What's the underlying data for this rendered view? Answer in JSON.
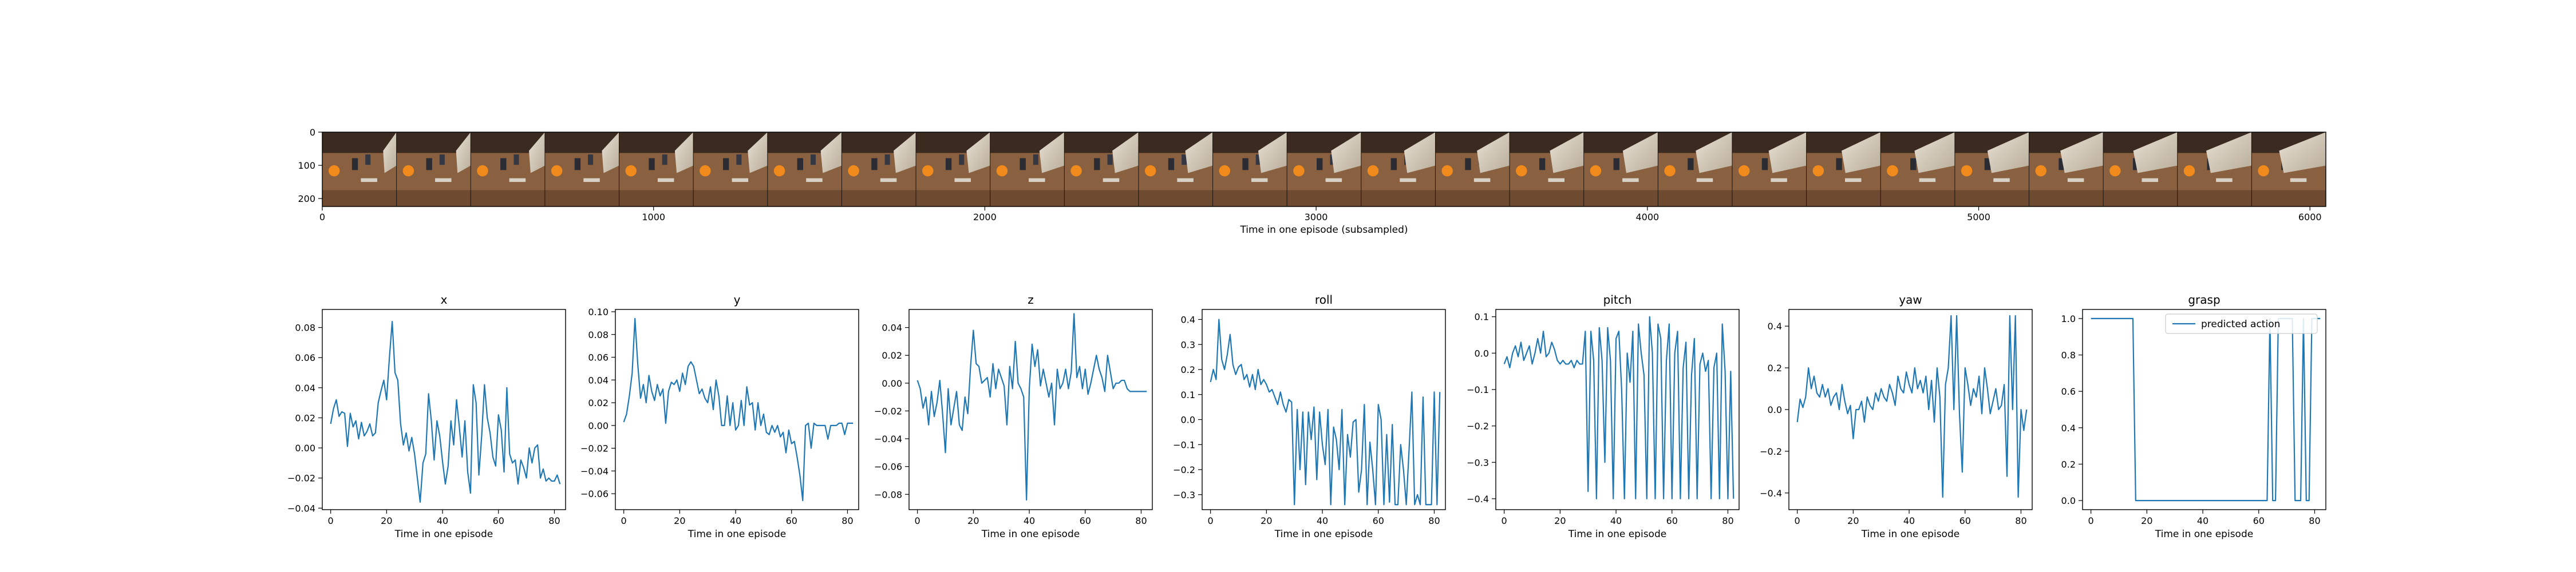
{
  "colors": {
    "line": "#1f77b4",
    "axes": "#000000",
    "background": "#ffffff"
  },
  "filmstrip": {
    "xlabel": "Time in one episode (subsampled)",
    "xlim": [
      0,
      6048
    ],
    "ylim": [
      224,
      0
    ],
    "xticks": [
      0,
      1000,
      2000,
      3000,
      4000,
      5000,
      6000
    ],
    "yticks": [
      0,
      100,
      200
    ],
    "frame_count": 27,
    "frame_width": 224,
    "image_description": "strip of robot camera frames"
  },
  "chart_data": [
    {
      "type": "line",
      "title": "x",
      "xlabel": "Time in one episode",
      "xlim": [
        -3,
        84
      ],
      "ylim": [
        -0.041,
        0.092
      ],
      "xticks": [
        0,
        20,
        40,
        60,
        80
      ],
      "yticks": [
        -0.04,
        -0.02,
        0.0,
        0.02,
        0.04,
        0.06,
        0.08
      ],
      "ytick_labels": [
        "−0.04",
        "−0.02",
        "0.00",
        "0.02",
        "0.04",
        "0.06",
        "0.08"
      ],
      "series": [
        {
          "values": [
            0.016,
            0.026,
            0.032,
            0.021,
            0.024,
            0.023,
            0.001,
            0.023,
            0.014,
            0.018,
            0.006,
            0.017,
            0.008,
            0.011,
            0.016,
            0.008,
            0.01,
            0.03,
            0.038,
            0.045,
            0.032,
            0.06,
            0.084,
            0.05,
            0.045,
            0.016,
            0.002,
            0.01,
            -0.002,
            0.007,
            -0.004,
            -0.02,
            -0.036,
            -0.01,
            -0.004,
            0.036,
            0.018,
            -0.008,
            0.018,
            0.008,
            -0.009,
            -0.024,
            -0.012,
            0.018,
            0.002,
            0.032,
            0.014,
            -0.006,
            0.018,
            -0.016,
            -0.03,
            0.042,
            0.03,
            -0.018,
            0.008,
            0.042,
            0.02,
            0.01,
            -0.006,
            -0.012,
            0.022,
            0.012,
            -0.016,
            0.04,
            -0.004,
            -0.01,
            -0.008,
            -0.024,
            -0.008,
            -0.013,
            -0.02,
            0.0,
            -0.01,
            0.0,
            0.002,
            -0.02,
            -0.014,
            -0.022,
            -0.02,
            -0.022,
            -0.022,
            -0.018,
            -0.024
          ]
        }
      ]
    },
    {
      "type": "line",
      "title": "y",
      "xlabel": "Time in one episode",
      "xlim": [
        -3,
        84
      ],
      "ylim": [
        -0.074,
        0.102
      ],
      "xticks": [
        0,
        20,
        40,
        60,
        80
      ],
      "yticks": [
        -0.06,
        -0.04,
        -0.02,
        0.0,
        0.02,
        0.04,
        0.06,
        0.08,
        0.1
      ],
      "ytick_labels": [
        "−0.06",
        "−0.04",
        "−0.02",
        "0.00",
        "0.02",
        "0.04",
        "0.06",
        "0.08",
        "0.10"
      ],
      "series": [
        {
          "values": [
            0.003,
            0.01,
            0.026,
            0.046,
            0.094,
            0.054,
            0.024,
            0.036,
            0.02,
            0.044,
            0.03,
            0.022,
            0.036,
            0.026,
            0.032,
            0.002,
            0.03,
            0.038,
            0.036,
            0.04,
            0.03,
            0.046,
            0.036,
            0.052,
            0.056,
            0.052,
            0.04,
            0.028,
            0.032,
            0.024,
            0.02,
            0.034,
            0.014,
            0.04,
            0.026,
            0.0,
            0.0,
            0.026,
            0.0,
            0.02,
            -0.004,
            0.0,
            0.022,
            0.0,
            0.034,
            0.018,
            0.02,
            -0.004,
            0.02,
            0.0,
            0.01,
            -0.006,
            -0.008,
            0.0,
            -0.006,
            0.0,
            -0.01,
            -0.006,
            -0.024,
            -0.004,
            -0.016,
            -0.014,
            -0.028,
            -0.044,
            -0.066,
            0.0,
            0.002,
            -0.02,
            0.002,
            0.0,
            0.0,
            0.0,
            0.0,
            -0.012,
            0.0,
            0.0,
            0.0,
            0.002,
            0.002,
            -0.008,
            0.002,
            0.002,
            0.002
          ]
        }
      ]
    },
    {
      "type": "line",
      "title": "z",
      "xlabel": "Time in one episode",
      "xlim": [
        -3,
        84
      ],
      "ylim": [
        -0.091,
        0.053
      ],
      "xticks": [
        0,
        20,
        40,
        60,
        80
      ],
      "yticks": [
        -0.08,
        -0.06,
        -0.04,
        -0.02,
        0.0,
        0.02,
        0.04
      ],
      "ytick_labels": [
        "−0.08",
        "−0.06",
        "−0.04",
        "−0.02",
        "0.00",
        "0.02",
        "0.04"
      ],
      "series": [
        {
          "values": [
            0.002,
            -0.004,
            -0.018,
            -0.01,
            -0.03,
            -0.006,
            -0.024,
            -0.014,
            0.002,
            -0.022,
            -0.05,
            -0.004,
            -0.03,
            -0.018,
            -0.006,
            -0.03,
            -0.034,
            -0.01,
            -0.022,
            0.012,
            0.038,
            0.014,
            0.012,
            0.0,
            0.002,
            0.004,
            -0.01,
            0.014,
            -0.004,
            0.01,
            0.004,
            -0.002,
            -0.03,
            0.012,
            -0.004,
            0.03,
            0.0,
            -0.004,
            -0.01,
            -0.084,
            -0.004,
            0.028,
            0.012,
            0.024,
            -0.002,
            0.01,
            0.0,
            -0.01,
            0.0,
            -0.03,
            0.01,
            -0.004,
            0.0,
            0.01,
            -0.004,
            0.008,
            0.05,
            0.004,
            0.012,
            -0.004,
            0.01,
            -0.008,
            0.0,
            0.01,
            0.02,
            0.01,
            0.004,
            -0.006,
            0.02,
            0.008,
            -0.004,
            0.0,
            0.0,
            0.002,
            0.002,
            -0.004,
            -0.006,
            -0.006,
            -0.006,
            -0.006,
            -0.006,
            -0.006,
            -0.006
          ]
        }
      ]
    },
    {
      "type": "line",
      "title": "roll",
      "xlabel": "Time in one episode",
      "xlim": [
        -3,
        84
      ],
      "ylim": [
        -0.36,
        0.44
      ],
      "xticks": [
        0,
        20,
        40,
        60,
        80
      ],
      "yticks": [
        -0.3,
        -0.2,
        -0.1,
        0.0,
        0.1,
        0.2,
        0.3,
        0.4
      ],
      "ytick_labels": [
        "−0.3",
        "−0.2",
        "−0.1",
        "0.0",
        "0.1",
        "0.2",
        "0.3",
        "0.4"
      ],
      "series": [
        {
          "values": [
            0.15,
            0.2,
            0.16,
            0.4,
            0.24,
            0.2,
            0.26,
            0.34,
            0.22,
            0.18,
            0.21,
            0.22,
            0.16,
            0.18,
            0.13,
            0.18,
            0.12,
            0.2,
            0.14,
            0.16,
            0.14,
            0.11,
            0.12,
            0.09,
            0.06,
            0.11,
            0.06,
            0.03,
            0.08,
            0.07,
            -0.34,
            0.04,
            -0.2,
            0.03,
            -0.26,
            0.03,
            -0.08,
            0.05,
            -0.24,
            0.03,
            -0.1,
            -0.18,
            0.04,
            -0.34,
            -0.03,
            -0.08,
            -0.2,
            0.04,
            -0.34,
            -0.06,
            -0.15,
            -0.01,
            0.0,
            -0.29,
            -0.2,
            0.06,
            -0.34,
            -0.09,
            -0.2,
            -0.34,
            0.06,
            0.0,
            -0.34,
            -0.06,
            -0.33,
            -0.02,
            -0.34,
            -0.34,
            -0.1,
            -0.2,
            -0.34,
            -0.12,
            0.11,
            -0.34,
            -0.3,
            -0.34,
            0.09,
            -0.34,
            -0.34,
            -0.34,
            0.11,
            -0.34,
            0.11
          ]
        }
      ]
    },
    {
      "type": "line",
      "title": "pitch",
      "xlabel": "Time in one episode",
      "xlim": [
        -3,
        84
      ],
      "ylim": [
        -0.43,
        0.12
      ],
      "xticks": [
        0,
        20,
        40,
        60,
        80
      ],
      "yticks": [
        -0.4,
        -0.3,
        -0.2,
        -0.1,
        0.0,
        0.1
      ],
      "ytick_labels": [
        "−0.4",
        "−0.3",
        "−0.2",
        "−0.1",
        "0.0",
        "0.1"
      ],
      "series": [
        {
          "values": [
            -0.03,
            -0.01,
            -0.04,
            0.0,
            0.02,
            -0.01,
            0.03,
            -0.02,
            0.0,
            0.02,
            -0.03,
            0.0,
            0.04,
            0.0,
            0.06,
            -0.01,
            0.0,
            0.03,
            0.01,
            -0.02,
            -0.03,
            -0.02,
            -0.03,
            -0.03,
            -0.02,
            -0.04,
            -0.02,
            -0.03,
            -0.03,
            0.06,
            -0.38,
            0.06,
            -0.02,
            -0.4,
            0.07,
            -0.02,
            -0.3,
            0.07,
            -0.02,
            -0.4,
            0.04,
            0.06,
            -0.1,
            -0.4,
            0.0,
            -0.08,
            0.06,
            -0.4,
            0.08,
            0.0,
            -0.06,
            -0.4,
            0.1,
            0.0,
            -0.4,
            0.08,
            0.04,
            -0.4,
            -0.02,
            0.08,
            -0.4,
            0.0,
            0.06,
            -0.4,
            -0.04,
            0.03,
            -0.4,
            -0.06,
            0.04,
            -0.4,
            -0.03,
            0.0,
            -0.05,
            -0.02,
            -0.4,
            -0.04,
            0.0,
            -0.4,
            0.08,
            -0.05,
            -0.4,
            -0.05,
            -0.4
          ]
        }
      ]
    },
    {
      "type": "line",
      "title": "yaw",
      "xlabel": "Time in one episode",
      "xlim": [
        -3,
        84
      ],
      "ylim": [
        -0.48,
        0.48
      ],
      "xticks": [
        0,
        20,
        40,
        60,
        80
      ],
      "yticks": [
        -0.4,
        -0.2,
        0.0,
        0.2,
        0.4
      ],
      "ytick_labels": [
        "−0.4",
        "−0.2",
        "0.0",
        "0.2",
        "0.4"
      ],
      "series": [
        {
          "values": [
            -0.06,
            0.05,
            0.01,
            0.06,
            0.2,
            0.1,
            0.16,
            0.08,
            0.06,
            0.12,
            0.06,
            0.1,
            0.02,
            0.06,
            0.08,
            0.0,
            0.12,
            0.04,
            -0.02,
            0.02,
            -0.14,
            0.0,
            0.0,
            0.04,
            -0.06,
            0.06,
            0.02,
            0.0,
            0.08,
            0.04,
            0.1,
            0.06,
            0.04,
            0.12,
            0.08,
            0.02,
            0.16,
            0.1,
            0.08,
            0.18,
            0.12,
            0.08,
            0.2,
            0.1,
            0.14,
            0.08,
            0.16,
            0.0,
            0.14,
            -0.06,
            0.2,
            0.06,
            -0.42,
            0.12,
            0.2,
            0.45,
            0.0,
            0.45,
            -0.02,
            -0.3,
            0.2,
            0.12,
            0.02,
            0.1,
            0.06,
            0.16,
            -0.02,
            0.2,
            0.1,
            -0.02,
            0.04,
            0.1,
            0.0,
            0.02,
            0.12,
            -0.32,
            0.45,
            0.0,
            0.45,
            -0.42,
            0.0,
            -0.1,
            0.0
          ]
        }
      ]
    },
    {
      "type": "line",
      "title": "grasp",
      "xlabel": "Time in one episode",
      "xlim": [
        -3,
        84
      ],
      "ylim": [
        -0.05,
        1.05
      ],
      "xticks": [
        0,
        20,
        40,
        60,
        80
      ],
      "yticks": [
        0.0,
        0.2,
        0.4,
        0.6,
        0.8,
        1.0
      ],
      "ytick_labels": [
        "0.0",
        "0.2",
        "0.4",
        "0.6",
        "0.8",
        "1.0"
      ],
      "legend": {
        "label": "predicted action",
        "placement": "top-right"
      },
      "series": [
        {
          "name": "predicted action",
          "values": [
            1,
            1,
            1,
            1,
            1,
            1,
            1,
            1,
            1,
            1,
            1,
            1,
            1,
            1,
            1,
            1,
            0,
            0,
            0,
            0,
            0,
            0,
            0,
            0,
            0,
            0,
            0,
            0,
            0,
            0,
            0,
            0,
            0,
            0,
            0,
            0,
            0,
            0,
            0,
            0,
            0,
            0,
            0,
            0,
            0,
            0,
            0,
            0,
            0,
            0,
            0,
            0,
            0,
            0,
            0,
            0,
            0,
            0,
            0,
            0,
            0,
            0,
            0,
            0,
            1,
            0,
            0,
            1,
            1,
            1,
            1,
            1,
            1,
            0,
            0,
            0,
            1,
            0,
            0,
            1,
            1,
            1,
            1
          ]
        }
      ]
    }
  ]
}
